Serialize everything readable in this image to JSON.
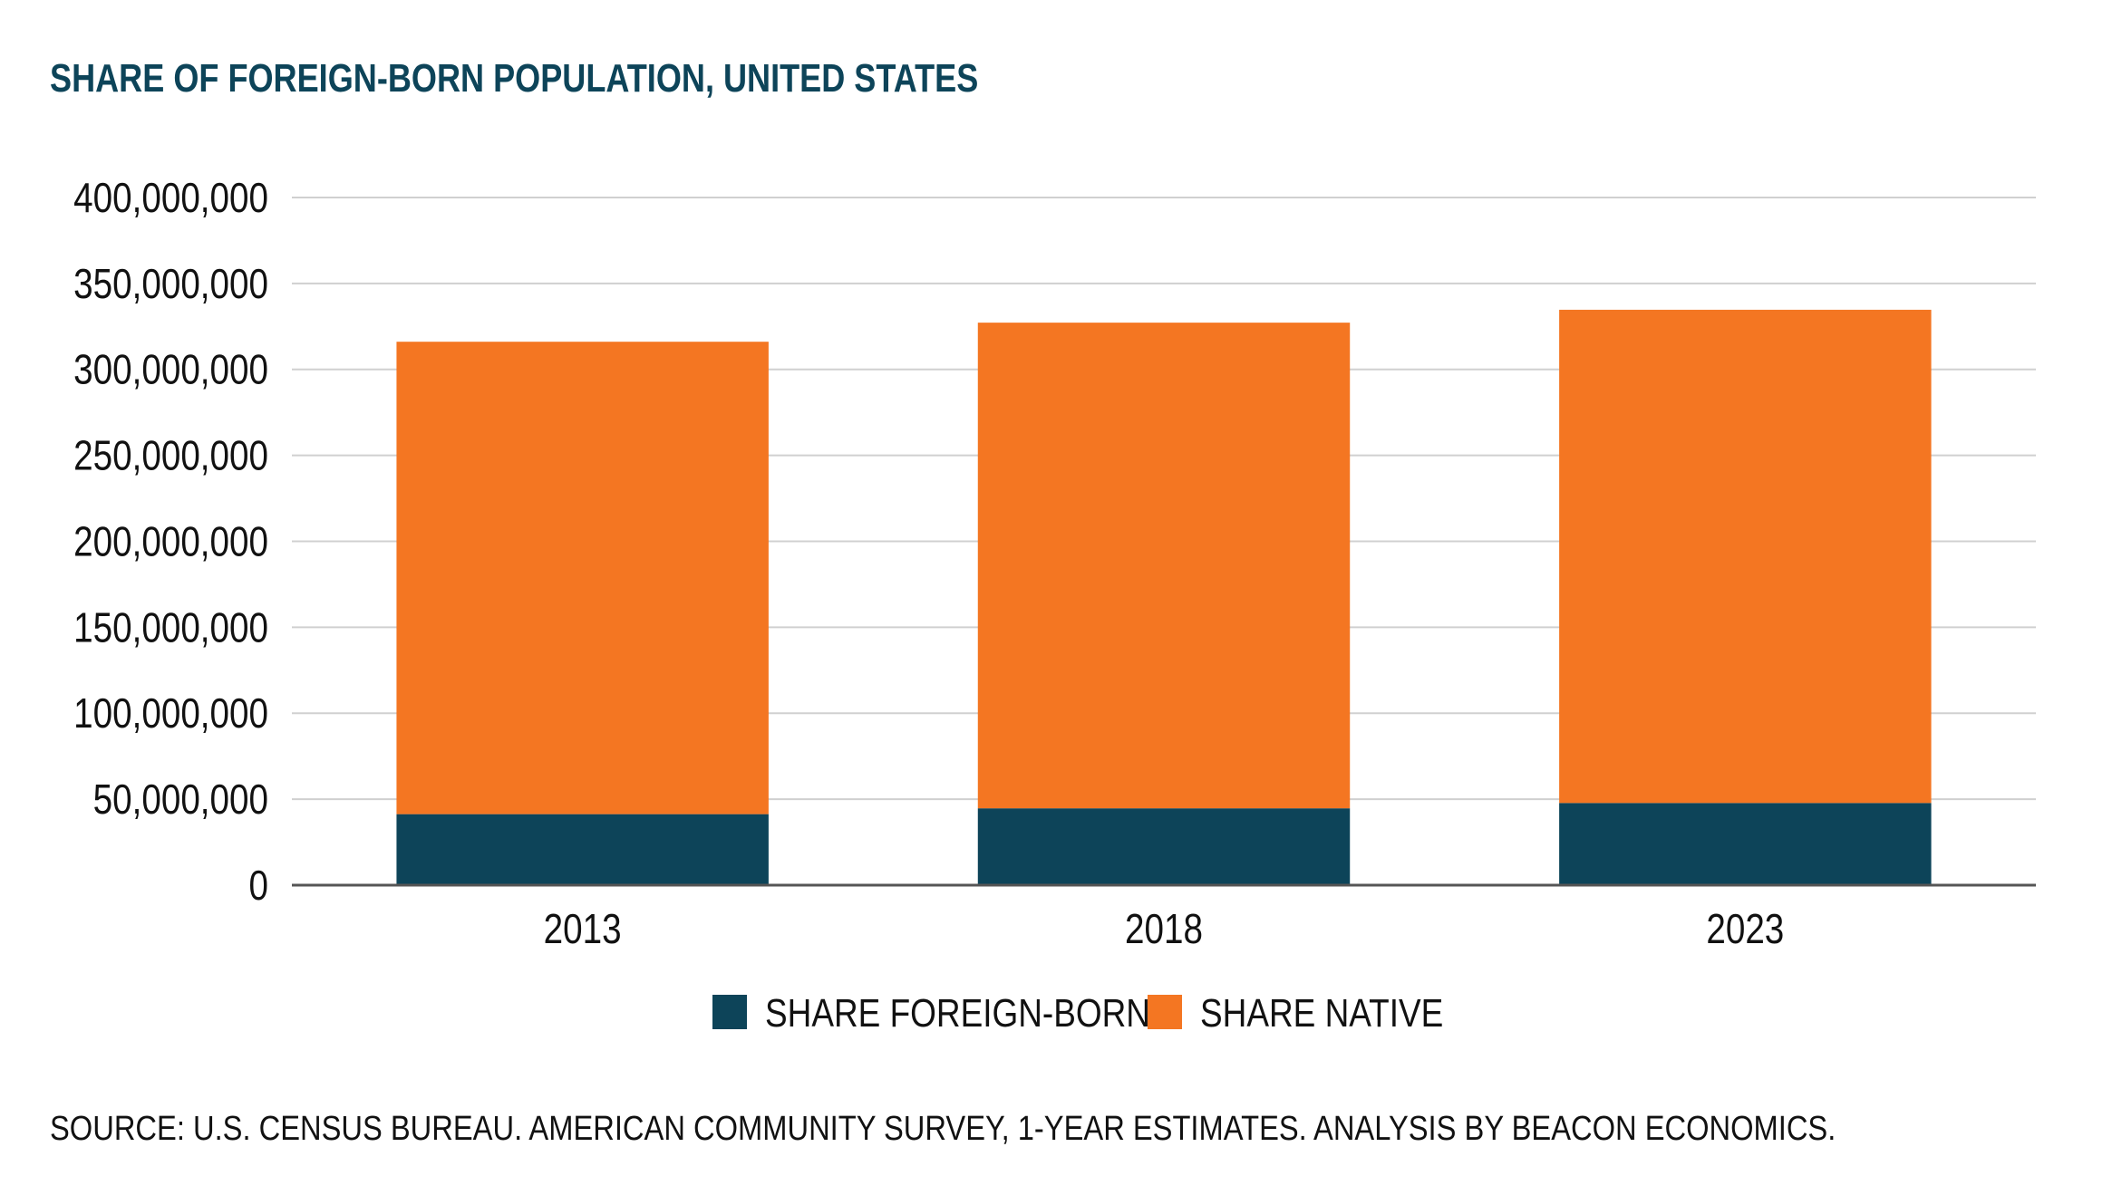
{
  "chart_data": {
    "type": "bar",
    "stacked": true,
    "title": "SHARE OF FOREIGN-BORN POPULATION, UNITED STATES",
    "categories": [
      "2013",
      "2018",
      "2023"
    ],
    "series": [
      {
        "name": "SHARE FOREIGN-BORN",
        "color": "#0d4459",
        "values": [
          41300000,
          44700000,
          47800000
        ]
      },
      {
        "name": "SHARE NATIVE",
        "color": "#f47622",
        "values": [
          274800000,
          282500000,
          286900000
        ]
      }
    ],
    "ylim": [
      0,
      400000000
    ],
    "yticks": [
      {
        "value": 0,
        "label": "0"
      },
      {
        "value": 50000000,
        "label": "50,000,000"
      },
      {
        "value": 100000000,
        "label": "100,000,000"
      },
      {
        "value": 150000000,
        "label": "150,000,000"
      },
      {
        "value": 200000000,
        "label": "200,000,000"
      },
      {
        "value": 250000000,
        "label": "250,000,000"
      },
      {
        "value": 300000000,
        "label": "300,000,000"
      },
      {
        "value": 350000000,
        "label": "350,000,000"
      },
      {
        "value": 400000000,
        "label": "400,000,000"
      }
    ],
    "grid": true,
    "legend": "bottom-center",
    "source": "SOURCE: U.S. CENSUS BUREAU. AMERICAN COMMUNITY SURVEY, 1-YEAR ESTIMATES. ANALYSIS BY BEACON ECONOMICS."
  }
}
